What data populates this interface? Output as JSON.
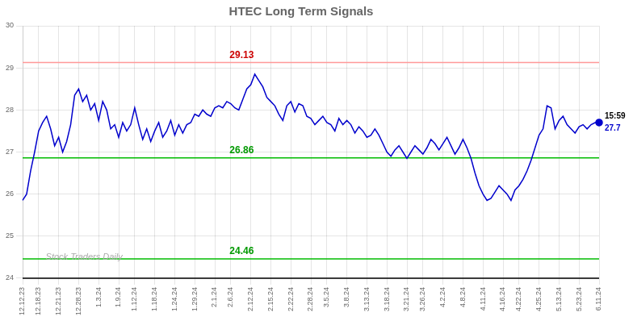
{
  "chart_data": {
    "type": "line",
    "title": "HTEC Long Term Signals",
    "watermark": "Stock Traders Daily",
    "watermark_color": "#aaaaaa",
    "background_color": "#ffffff",
    "categories": [
      "12.12.23",
      null,
      null,
      null,
      "12.18.23",
      null,
      null,
      null,
      null,
      "12.21.23",
      null,
      null,
      null,
      null,
      "12.28.23",
      null,
      null,
      null,
      null,
      "1.3.24",
      null,
      null,
      null,
      null,
      "1.9.24",
      null,
      null,
      null,
      "1.12.24",
      null,
      null,
      null,
      null,
      "1.18.24",
      null,
      null,
      null,
      null,
      "1.24.24",
      null,
      null,
      null,
      null,
      "1.29.24",
      null,
      null,
      null,
      null,
      "2.1.24",
      null,
      null,
      null,
      "2.6.24",
      null,
      null,
      null,
      null,
      "2.12.24",
      null,
      null,
      null,
      null,
      "2.15.24",
      null,
      null,
      null,
      null,
      "2.22.24",
      null,
      null,
      null,
      null,
      "2.28.24",
      null,
      null,
      null,
      "3.5.24",
      null,
      null,
      null,
      null,
      "3.8.24",
      null,
      null,
      null,
      null,
      "3.13.24",
      null,
      null,
      null,
      null,
      "3.18.24",
      null,
      null,
      null,
      null,
      "3.21.24",
      null,
      null,
      null,
      "3.26.24",
      null,
      null,
      null,
      null,
      "4.2.24",
      null,
      null,
      null,
      null,
      "4.8.24",
      null,
      null,
      null,
      null,
      "4.11.24",
      null,
      null,
      null,
      null,
      "4.16.24",
      null,
      null,
      null,
      "4.22.24",
      null,
      null,
      null,
      null,
      "4.25.24",
      null,
      null,
      null,
      null,
      "5.13.24",
      null,
      null,
      null,
      null,
      "5.23.24",
      null,
      null,
      null,
      null,
      "6.11.24"
    ],
    "values": [
      25.85,
      26.0,
      26.55,
      27.0,
      27.5,
      27.7,
      27.85,
      27.55,
      27.15,
      27.35,
      27.0,
      27.25,
      27.65,
      28.35,
      28.5,
      28.2,
      28.35,
      28.0,
      28.15,
      27.75,
      28.2,
      28.0,
      27.55,
      27.65,
      27.35,
      27.7,
      27.5,
      27.65,
      28.05,
      27.65,
      27.3,
      27.55,
      27.25,
      27.5,
      27.7,
      27.35,
      27.5,
      27.75,
      27.4,
      27.65,
      27.45,
      27.65,
      27.7,
      27.9,
      27.85,
      28.0,
      27.9,
      27.85,
      28.05,
      28.1,
      28.05,
      28.2,
      28.15,
      28.05,
      28.0,
      28.25,
      28.5,
      28.6,
      28.85,
      28.7,
      28.55,
      28.3,
      28.2,
      28.1,
      27.9,
      27.75,
      28.1,
      28.2,
      27.95,
      28.15,
      28.1,
      27.85,
      27.8,
      27.65,
      27.75,
      27.85,
      27.7,
      27.65,
      27.5,
      27.8,
      27.65,
      27.75,
      27.65,
      27.45,
      27.6,
      27.5,
      27.35,
      27.4,
      27.55,
      27.4,
      27.2,
      27.0,
      26.9,
      27.05,
      27.15,
      27.0,
      26.85,
      27.0,
      27.15,
      27.05,
      26.95,
      27.1,
      27.3,
      27.2,
      27.05,
      27.2,
      27.35,
      27.15,
      26.95,
      27.1,
      27.3,
      27.1,
      26.85,
      26.5,
      26.2,
      26.0,
      25.85,
      25.9,
      26.05,
      26.2,
      26.1,
      26.0,
      25.85,
      26.1,
      26.2,
      26.35,
      26.55,
      26.8,
      27.1,
      27.4,
      27.55,
      28.1,
      28.05,
      27.55,
      27.75,
      27.85,
      27.65,
      27.55,
      27.45,
      27.6,
      27.65,
      27.55,
      27.65,
      27.7,
      27.7
    ],
    "color": "#0000cc",
    "marker": "last_point",
    "last_point_labels": [
      {
        "text": "15:59",
        "color": "#000000"
      },
      {
        "text": "27.7",
        "color": "#0000cc"
      }
    ],
    "hlines": [
      {
        "value": 29.13,
        "color": "#ff9999",
        "label": "29.13",
        "label_color": "#cc0000"
      },
      {
        "value": 26.86,
        "color": "#00bb00",
        "label": "26.86",
        "label_color": "#009900"
      },
      {
        "value": 24.46,
        "color": "#00bb00",
        "label": "24.46",
        "label_color": "#009900"
      },
      {
        "value": 24.0,
        "color": "#000000"
      }
    ],
    "ylim": [
      24.0,
      30.0
    ],
    "yticks": [
      24,
      25,
      26,
      27,
      28,
      29,
      30
    ],
    "grid": true
  }
}
